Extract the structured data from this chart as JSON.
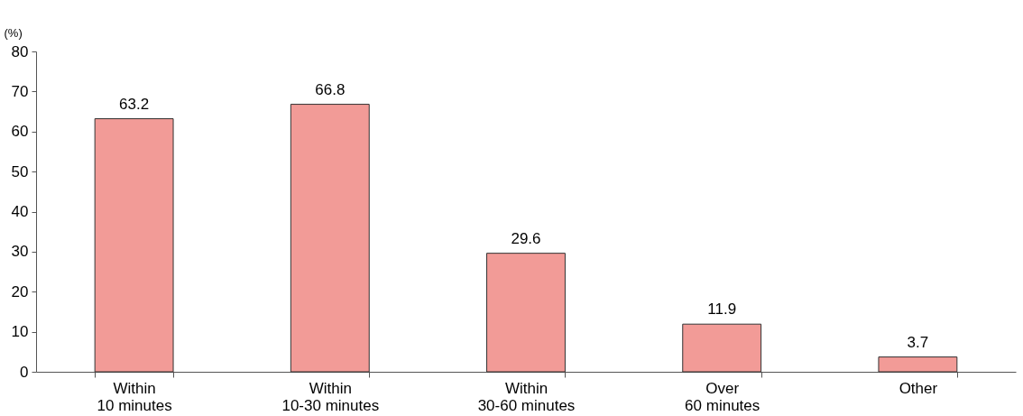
{
  "chart_data": {
    "type": "bar",
    "ylabel": "(%)",
    "categories": [
      "Within\n10 minutes",
      "Within\n10-30 minutes",
      "Within\n30-60 minutes",
      "Over\n60 minutes",
      "Other"
    ],
    "values": [
      63.2,
      66.8,
      29.6,
      11.9,
      3.7
    ],
    "color": "#f29b97",
    "ylim": [
      0,
      80
    ],
    "yticks": [
      0,
      10,
      20,
      30,
      40,
      50,
      60,
      70,
      80
    ],
    "data_labels": true,
    "grid": false
  }
}
